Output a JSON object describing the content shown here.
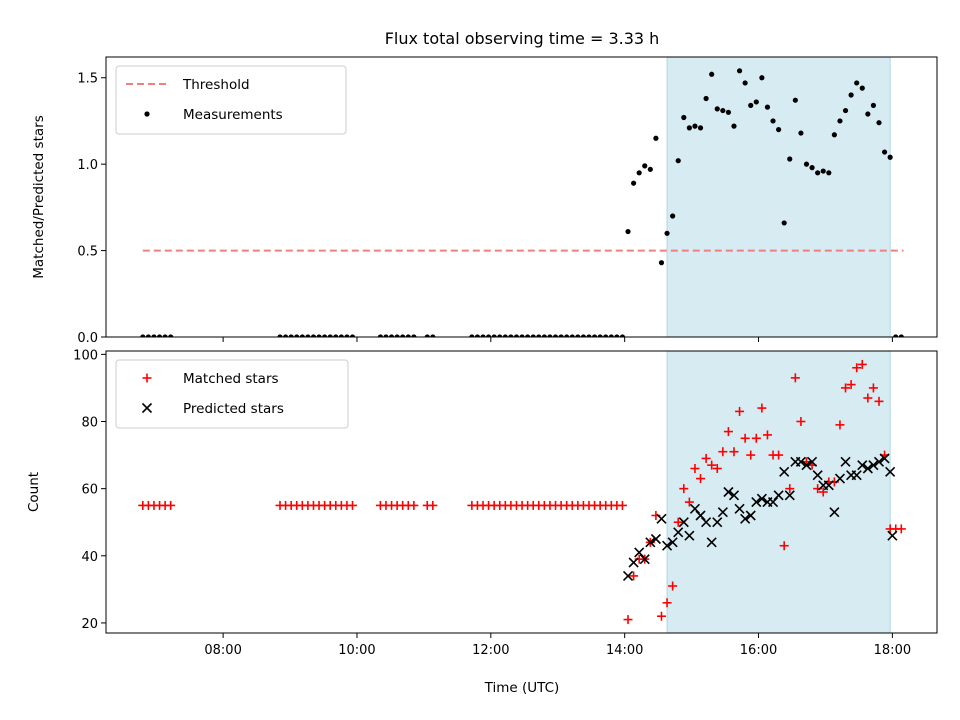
{
  "title": "Flux total observing time = 3.33 h",
  "xlabel": "Time (UTC)",
  "x_tick_labels": [
    "08:00",
    "10:00",
    "12:00",
    "14:00",
    "16:00",
    "18:00"
  ],
  "colors": {
    "threshold": "#f08080",
    "measurements": "#000000",
    "matched": "#ff0000",
    "predicted": "#000000",
    "highlight_band": "#add8e6"
  },
  "chart_data": [
    {
      "type": "scatter",
      "panel": "top",
      "ylabel": "Matched/Predicted stars",
      "xlim": [
        "06:15",
        "18:40"
      ],
      "ylim": [
        0,
        1.62
      ],
      "yticks": [
        0.0,
        0.5,
        1.0,
        1.5
      ],
      "y_tick_labels": [
        "0.0",
        "0.5",
        "1.0",
        "1.5"
      ],
      "legend": {
        "position": "upper left",
        "entries": [
          "Threshold",
          "Measurements"
        ]
      },
      "threshold": {
        "name": "Threshold",
        "y": 0.5,
        "x_range": [
          "06:48",
          "18:10"
        ],
        "style": "dashed"
      },
      "highlight_span": [
        "14:38",
        "17:58"
      ],
      "measurements": {
        "name": "Measurements",
        "points": [
          [
            "06:48",
            0
          ],
          [
            "06:53",
            0
          ],
          [
            "06:58",
            0
          ],
          [
            "07:03",
            0
          ],
          [
            "07:08",
            0
          ],
          [
            "07:13",
            0
          ],
          [
            "08:51",
            0
          ],
          [
            "08:56",
            0
          ],
          [
            "09:01",
            0
          ],
          [
            "09:06",
            0
          ],
          [
            "09:11",
            0
          ],
          [
            "09:16",
            0
          ],
          [
            "09:21",
            0
          ],
          [
            "09:26",
            0
          ],
          [
            "09:31",
            0
          ],
          [
            "09:36",
            0
          ],
          [
            "09:41",
            0
          ],
          [
            "09:46",
            0
          ],
          [
            "09:51",
            0
          ],
          [
            "09:56",
            0
          ],
          [
            "10:21",
            0
          ],
          [
            "10:26",
            0
          ],
          [
            "10:31",
            0
          ],
          [
            "10:36",
            0
          ],
          [
            "10:41",
            0
          ],
          [
            "10:46",
            0
          ],
          [
            "10:51",
            0
          ],
          [
            "11:03",
            0
          ],
          [
            "11:08",
            0
          ],
          [
            "11:43",
            0
          ],
          [
            "11:48",
            0
          ],
          [
            "11:53",
            0
          ],
          [
            "11:58",
            0
          ],
          [
            "12:03",
            0
          ],
          [
            "12:08",
            0
          ],
          [
            "12:13",
            0
          ],
          [
            "12:18",
            0
          ],
          [
            "12:23",
            0
          ],
          [
            "12:28",
            0
          ],
          [
            "12:33",
            0
          ],
          [
            "12:38",
            0
          ],
          [
            "12:43",
            0
          ],
          [
            "12:48",
            0
          ],
          [
            "12:53",
            0
          ],
          [
            "12:58",
            0
          ],
          [
            "13:03",
            0
          ],
          [
            "13:08",
            0
          ],
          [
            "13:13",
            0
          ],
          [
            "13:18",
            0
          ],
          [
            "13:23",
            0
          ],
          [
            "13:28",
            0
          ],
          [
            "13:33",
            0
          ],
          [
            "13:38",
            0
          ],
          [
            "13:43",
            0
          ],
          [
            "13:48",
            0
          ],
          [
            "13:53",
            0
          ],
          [
            "13:58",
            0
          ],
          [
            "14:03",
            0.61
          ],
          [
            "14:08",
            0.89
          ],
          [
            "14:13",
            0.95
          ],
          [
            "14:18",
            0.99
          ],
          [
            "14:23",
            0.97
          ],
          [
            "14:28",
            1.15
          ],
          [
            "14:33",
            0.43
          ],
          [
            "14:38",
            0.6
          ],
          [
            "14:43",
            0.7
          ],
          [
            "14:48",
            1.02
          ],
          [
            "14:53",
            1.27
          ],
          [
            "14:58",
            1.21
          ],
          [
            "15:03",
            1.22
          ],
          [
            "15:08",
            1.21
          ],
          [
            "15:13",
            1.38
          ],
          [
            "15:18",
            1.52
          ],
          [
            "15:23",
            1.32
          ],
          [
            "15:28",
            1.31
          ],
          [
            "15:33",
            1.3
          ],
          [
            "15:38",
            1.22
          ],
          [
            "15:43",
            1.54
          ],
          [
            "15:48",
            1.47
          ],
          [
            "15:53",
            1.34
          ],
          [
            "15:58",
            1.36
          ],
          [
            "16:03",
            1.5
          ],
          [
            "16:08",
            1.33
          ],
          [
            "16:13",
            1.25
          ],
          [
            "16:18",
            1.2
          ],
          [
            "16:23",
            0.66
          ],
          [
            "16:28",
            1.03
          ],
          [
            "16:33",
            1.37
          ],
          [
            "16:38",
            1.18
          ],
          [
            "16:43",
            1.0
          ],
          [
            "16:48",
            0.98
          ],
          [
            "16:53",
            0.95
          ],
          [
            "16:58",
            0.96
          ],
          [
            "17:03",
            0.95
          ],
          [
            "17:08",
            1.17
          ],
          [
            "17:13",
            1.25
          ],
          [
            "17:18",
            1.31
          ],
          [
            "17:23",
            1.4
          ],
          [
            "17:28",
            1.47
          ],
          [
            "17:33",
            1.44
          ],
          [
            "17:38",
            1.29
          ],
          [
            "17:43",
            1.34
          ],
          [
            "17:48",
            1.24
          ],
          [
            "17:53",
            1.07
          ],
          [
            "17:58",
            1.04
          ],
          [
            "18:03",
            0
          ],
          [
            "18:08",
            0
          ]
        ]
      }
    },
    {
      "type": "scatter",
      "panel": "bottom",
      "ylabel": "Count",
      "xlim": [
        "06:15",
        "18:40"
      ],
      "ylim": [
        17,
        101
      ],
      "yticks": [
        20,
        40,
        60,
        80,
        100
      ],
      "y_tick_labels": [
        "20",
        "40",
        "60",
        "80",
        "100"
      ],
      "legend": {
        "position": "upper left",
        "entries": [
          "Matched stars",
          "Predicted stars"
        ]
      },
      "highlight_span": [
        "14:38",
        "17:58"
      ],
      "series": [
        {
          "name": "Matched stars",
          "marker": "plus",
          "points": [
            [
              "06:48",
              55
            ],
            [
              "06:53",
              55
            ],
            [
              "06:58",
              55
            ],
            [
              "07:03",
              55
            ],
            [
              "07:08",
              55
            ],
            [
              "07:13",
              55
            ],
            [
              "08:51",
              55
            ],
            [
              "08:56",
              55
            ],
            [
              "09:01",
              55
            ],
            [
              "09:06",
              55
            ],
            [
              "09:11",
              55
            ],
            [
              "09:16",
              55
            ],
            [
              "09:21",
              55
            ],
            [
              "09:26",
              55
            ],
            [
              "09:31",
              55
            ],
            [
              "09:36",
              55
            ],
            [
              "09:41",
              55
            ],
            [
              "09:46",
              55
            ],
            [
              "09:51",
              55
            ],
            [
              "09:56",
              55
            ],
            [
              "10:21",
              55
            ],
            [
              "10:26",
              55
            ],
            [
              "10:31",
              55
            ],
            [
              "10:36",
              55
            ],
            [
              "10:41",
              55
            ],
            [
              "10:46",
              55
            ],
            [
              "10:51",
              55
            ],
            [
              "11:03",
              55
            ],
            [
              "11:08",
              55
            ],
            [
              "11:43",
              55
            ],
            [
              "11:48",
              55
            ],
            [
              "11:53",
              55
            ],
            [
              "11:58",
              55
            ],
            [
              "12:03",
              55
            ],
            [
              "12:08",
              55
            ],
            [
              "12:13",
              55
            ],
            [
              "12:18",
              55
            ],
            [
              "12:23",
              55
            ],
            [
              "12:28",
              55
            ],
            [
              "12:33",
              55
            ],
            [
              "12:38",
              55
            ],
            [
              "12:43",
              55
            ],
            [
              "12:48",
              55
            ],
            [
              "12:53",
              55
            ],
            [
              "12:58",
              55
            ],
            [
              "13:03",
              55
            ],
            [
              "13:08",
              55
            ],
            [
              "13:13",
              55
            ],
            [
              "13:18",
              55
            ],
            [
              "13:23",
              55
            ],
            [
              "13:28",
              55
            ],
            [
              "13:33",
              55
            ],
            [
              "13:38",
              55
            ],
            [
              "13:43",
              55
            ],
            [
              "13:48",
              55
            ],
            [
              "13:53",
              55
            ],
            [
              "13:58",
              55
            ],
            [
              "14:03",
              21
            ],
            [
              "14:08",
              34
            ],
            [
              "14:13",
              39
            ],
            [
              "14:18",
              39
            ],
            [
              "14:23",
              44
            ],
            [
              "14:28",
              52
            ],
            [
              "14:33",
              22
            ],
            [
              "14:38",
              26
            ],
            [
              "14:43",
              31
            ],
            [
              "14:48",
              50
            ],
            [
              "14:53",
              60
            ],
            [
              "14:58",
              56
            ],
            [
              "15:03",
              66
            ],
            [
              "15:08",
              63
            ],
            [
              "15:13",
              69
            ],
            [
              "15:18",
              67
            ],
            [
              "15:23",
              66
            ],
            [
              "15:28",
              71
            ],
            [
              "15:33",
              77
            ],
            [
              "15:38",
              71
            ],
            [
              "15:43",
              83
            ],
            [
              "15:48",
              75
            ],
            [
              "15:53",
              70
            ],
            [
              "15:58",
              75
            ],
            [
              "16:03",
              84
            ],
            [
              "16:08",
              76
            ],
            [
              "16:13",
              70
            ],
            [
              "16:18",
              70
            ],
            [
              "16:23",
              43
            ],
            [
              "16:28",
              60
            ],
            [
              "16:33",
              93
            ],
            [
              "16:38",
              80
            ],
            [
              "16:43",
              68
            ],
            [
              "16:48",
              67
            ],
            [
              "16:53",
              60
            ],
            [
              "16:58",
              59
            ],
            [
              "17:03",
              62
            ],
            [
              "17:08",
              62
            ],
            [
              "17:13",
              79
            ],
            [
              "17:18",
              90
            ],
            [
              "17:23",
              91
            ],
            [
              "17:28",
              96
            ],
            [
              "17:33",
              97
            ],
            [
              "17:38",
              87
            ],
            [
              "17:43",
              90
            ],
            [
              "17:48",
              86
            ],
            [
              "17:53",
              70
            ],
            [
              "17:58",
              48
            ],
            [
              "18:03",
              48
            ],
            [
              "18:08",
              48
            ]
          ]
        },
        {
          "name": "Predicted stars",
          "marker": "x",
          "points": [
            [
              "14:03",
              34
            ],
            [
              "14:08",
              38
            ],
            [
              "14:13",
              41
            ],
            [
              "14:18",
              39
            ],
            [
              "14:23",
              44
            ],
            [
              "14:28",
              45
            ],
            [
              "14:33",
              51
            ],
            [
              "14:38",
              43
            ],
            [
              "14:43",
              44
            ],
            [
              "14:48",
              47
            ],
            [
              "14:53",
              50
            ],
            [
              "14:58",
              46
            ],
            [
              "15:03",
              54
            ],
            [
              "15:08",
              52
            ],
            [
              "15:13",
              50
            ],
            [
              "15:18",
              44
            ],
            [
              "15:23",
              50
            ],
            [
              "15:28",
              53
            ],
            [
              "15:33",
              59
            ],
            [
              "15:38",
              58
            ],
            [
              "15:43",
              54
            ],
            [
              "15:48",
              51
            ],
            [
              "15:53",
              52
            ],
            [
              "15:58",
              56
            ],
            [
              "16:03",
              57
            ],
            [
              "16:08",
              56
            ],
            [
              "16:13",
              56
            ],
            [
              "16:18",
              58
            ],
            [
              "16:23",
              65
            ],
            [
              "16:28",
              58
            ],
            [
              "16:33",
              68
            ],
            [
              "16:38",
              68
            ],
            [
              "16:43",
              67
            ],
            [
              "16:48",
              68
            ],
            [
              "16:53",
              64
            ],
            [
              "16:58",
              61
            ],
            [
              "17:03",
              61
            ],
            [
              "17:08",
              53
            ],
            [
              "17:13",
              63
            ],
            [
              "17:18",
              68
            ],
            [
              "17:23",
              64
            ],
            [
              "17:28",
              64
            ],
            [
              "17:33",
              67
            ],
            [
              "17:38",
              66
            ],
            [
              "17:43",
              67
            ],
            [
              "17:48",
              68
            ],
            [
              "17:53",
              69
            ],
            [
              "17:58",
              65
            ],
            [
              "18:00",
              46
            ]
          ]
        }
      ]
    }
  ]
}
